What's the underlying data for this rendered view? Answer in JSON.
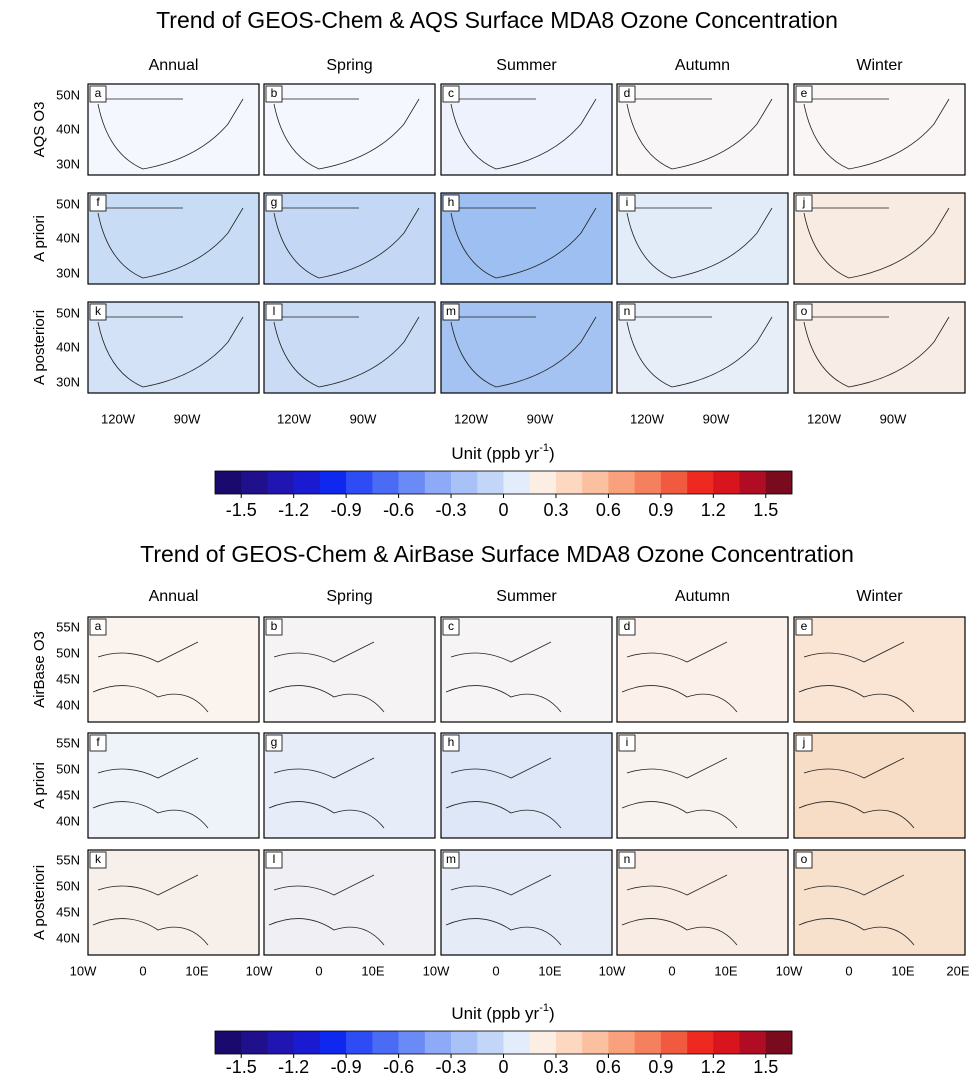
{
  "figures": [
    {
      "title": "Trend of GEOS-Chem & AQS Surface MDA8 Ozone Concentration",
      "columns": [
        "Annual",
        "Spring",
        "Summer",
        "Autumn",
        "Winter"
      ],
      "rows": [
        "AQS O3",
        "A priori",
        "A posteriori"
      ],
      "panel_labels": [
        "a",
        "b",
        "c",
        "d",
        "e",
        "f",
        "g",
        "h",
        "i",
        "j",
        "k",
        "l",
        "m",
        "n",
        "o"
      ],
      "lat_labels": [
        "50N",
        "40N",
        "30N"
      ],
      "lon_labels": [
        [
          "120W",
          "90W"
        ],
        [
          "120W",
          "90W"
        ],
        [
          "120W",
          "90W"
        ],
        [
          "120W",
          "90W"
        ],
        [
          "120W",
          "90W"
        ]
      ],
      "unit": {
        "text": "Unit (ppb yr",
        "superscript": "-1",
        "close": ")"
      },
      "colorbar": {
        "lim": [
          -1.65,
          1.65
        ],
        "ticks": [
          -1.5,
          -1.2,
          -0.9,
          -0.6,
          -0.3,
          0,
          0.3,
          0.6,
          0.9,
          1.2,
          1.5
        ],
        "colors": [
          "#1a0a6e",
          "#20108c",
          "#2015b0",
          "#1a1ad0",
          "#0f28f0",
          "#2d4cf5",
          "#4a6cf5",
          "#6a8af5",
          "#8caaf5",
          "#a8c2f7",
          "#c4d6f8",
          "#e2ecfb",
          "#fdeee4",
          "#fcd8c0",
          "#fbc0a0",
          "#f9a07c",
          "#f5805e",
          "#f25a40",
          "#ee2a20",
          "#d8141c",
          "#b00c24",
          "#7a0a1e"
        ]
      }
    },
    {
      "title": "Trend of GEOS-Chem & AirBase Surface MDA8 Ozone Concentration",
      "columns": [
        "Annual",
        "Spring",
        "Summer",
        "Autumn",
        "Winter"
      ],
      "rows": [
        "AirBase O3",
        "A priori",
        "A posteriori"
      ],
      "panel_labels": [
        "a",
        "b",
        "c",
        "d",
        "e",
        "f",
        "g",
        "h",
        "i",
        "j",
        "k",
        "l",
        "m",
        "n",
        "o"
      ],
      "lat_labels": [
        "55N",
        "50N",
        "45N",
        "40N"
      ],
      "lon_labels": [
        [
          "10W",
          "0",
          "10E"
        ],
        [
          "10W",
          "0",
          "10E"
        ],
        [
          "10W",
          "0",
          "10E"
        ],
        [
          "10W",
          "0",
          "10E"
        ],
        [
          "10W",
          "0",
          "10E",
          "20E"
        ]
      ],
      "unit": {
        "text": "Unit (ppb yr",
        "superscript": "-1",
        "close": ")"
      },
      "colorbar": {
        "lim": [
          -1.65,
          1.65
        ],
        "ticks": [
          -1.5,
          -1.2,
          -0.9,
          -0.6,
          -0.3,
          0,
          0.3,
          0.6,
          0.9,
          1.2,
          1.5
        ],
        "colors": [
          "#1a0a6e",
          "#20108c",
          "#2015b0",
          "#1a1ad0",
          "#0f28f0",
          "#2d4cf5",
          "#4a6cf5",
          "#6a8af5",
          "#8caaf5",
          "#a8c2f7",
          "#c4d6f8",
          "#e2ecfb",
          "#fdeee4",
          "#fcd8c0",
          "#fbc0a0",
          "#f9a07c",
          "#f5805e",
          "#f25a40",
          "#ee2a20",
          "#d8141c",
          "#b00c24",
          "#7a0a1e"
        ]
      }
    }
  ]
}
